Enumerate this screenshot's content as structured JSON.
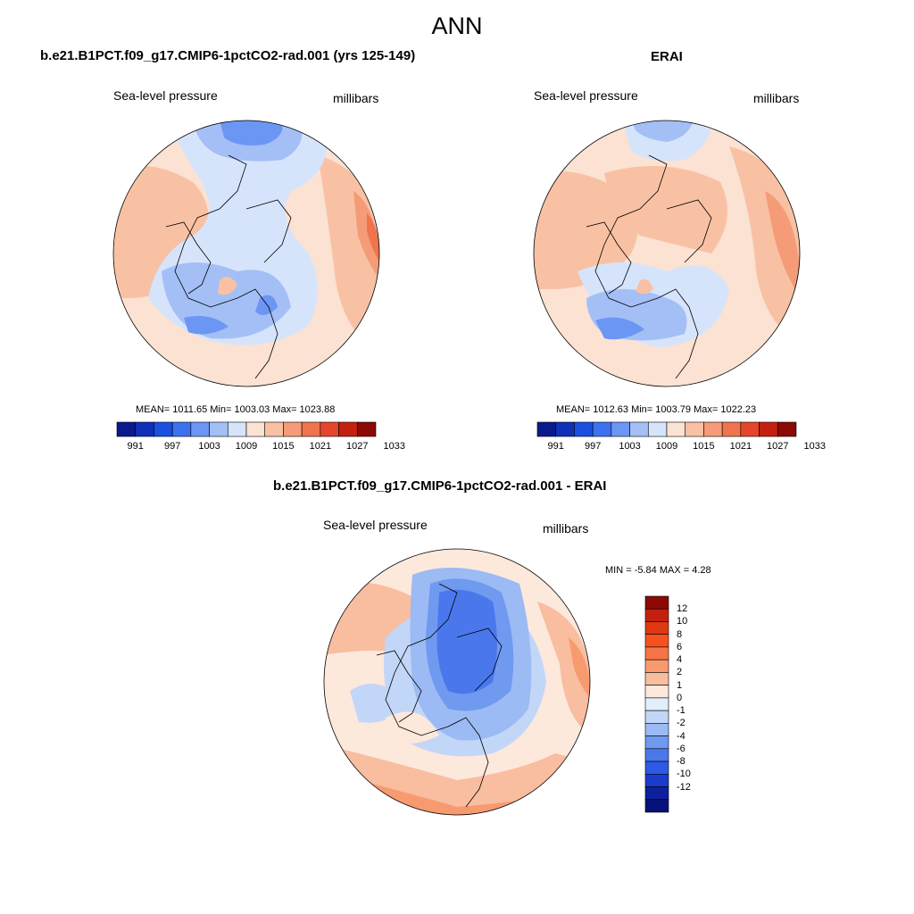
{
  "figure": {
    "title": "ANN",
    "left_panel": {
      "title": "b.e21.B1PCT.f09_g17.CMIP6-1pctCO2-rad.001 (yrs 125-149)",
      "variable": "Sea-level pressure",
      "units": "millibars",
      "stats": "MEAN= 1011.65  Min= 1003.03  Max= 1023.88"
    },
    "right_panel": {
      "title": "ERAI",
      "variable": "Sea-level pressure",
      "units": "millibars",
      "stats": "MEAN= 1012.63  Min= 1003.79  Max= 1022.23"
    },
    "diff_panel": {
      "title": "b.e21.B1PCT.f09_g17.CMIP6-1pctCO2-rad.001 - ERAI",
      "variable": "Sea-level pressure",
      "units": "millibars",
      "stats": "MIN =  -5.84 MAX =   4.28"
    }
  },
  "colorbar_main": {
    "colors": [
      "#0a1a8c",
      "#1030b8",
      "#1a4fe0",
      "#3c72f0",
      "#6b96f4",
      "#a3bff6",
      "#d6e4fb",
      "#fbe2d2",
      "#f9c1a4",
      "#f59b78",
      "#ef744e",
      "#e5452a",
      "#c4200f",
      "#8b0a05"
    ],
    "tick_labels": [
      "991",
      "997",
      "1003",
      "1009",
      "1015",
      "1021",
      "1027",
      "1033"
    ]
  },
  "colorbar_diff": {
    "colors": [
      "#8b0a05",
      "#c4200f",
      "#e03812",
      "#f5521e",
      "#f77446",
      "#f89a70",
      "#f9bda0",
      "#fde8dc",
      "#e2eefb",
      "#c2d6f8",
      "#9cbaf4",
      "#7099f0",
      "#4a78ec",
      "#2c5ae6",
      "#1a3ccc",
      "#0d1f9c",
      "#06127a"
    ],
    "tick_labels": [
      "12",
      "10",
      "8",
      "6",
      "4",
      "2",
      "1",
      "0",
      "-1",
      "-2",
      "-4",
      "-6",
      "-8",
      "-10",
      "-12"
    ]
  }
}
